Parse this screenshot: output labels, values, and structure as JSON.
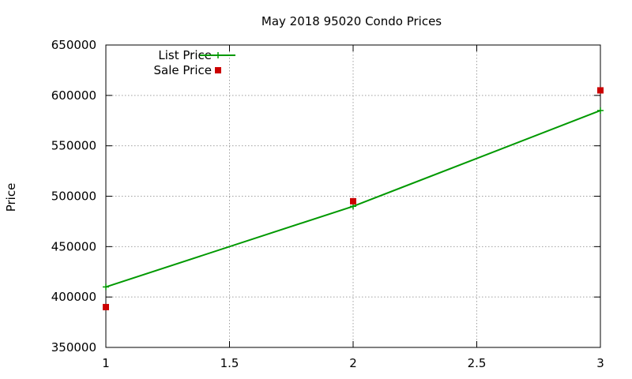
{
  "chart_data": {
    "type": "line",
    "title": "May 2018 95020 Condo Prices",
    "xlabel": "",
    "ylabel": "Price",
    "xlim": [
      1,
      3
    ],
    "ylim": [
      350000,
      650000
    ],
    "x_ticks": [
      "1",
      "1.5",
      "2",
      "2.5",
      "3"
    ],
    "y_ticks": [
      "350000",
      "400000",
      "450000",
      "500000",
      "550000",
      "600000",
      "650000"
    ],
    "grid": true,
    "legend_position": "top-left",
    "series": [
      {
        "name": "List Price",
        "style": "linespoints",
        "marker": "plus",
        "color": "#009900",
        "x": [
          1,
          2,
          3
        ],
        "y": [
          410000,
          490000,
          585000
        ]
      },
      {
        "name": "Sale Price",
        "style": "points",
        "marker": "square",
        "color": "#cc0000",
        "x": [
          1,
          2,
          3
        ],
        "y": [
          390000,
          495000,
          605000
        ]
      }
    ]
  }
}
